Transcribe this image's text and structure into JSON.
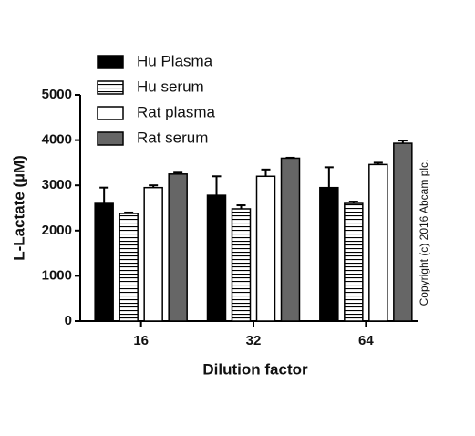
{
  "chart_data": {
    "type": "bar",
    "categories": [
      "16",
      "32",
      "64"
    ],
    "x_label": "Dilution factor",
    "y_label": "L-Lactate (µM)",
    "copyright": "Copyright (c) 2016 Abcam plc.",
    "ylim": [
      0,
      5000
    ],
    "yticks": [
      0,
      1000,
      2000,
      3000,
      4000,
      5000
    ],
    "series": [
      {
        "name": "Hu Plasma",
        "color": "#000000",
        "values": [
          2600,
          2780,
          2950
        ],
        "errors": [
          350,
          420,
          450
        ]
      },
      {
        "name": "Hu serum",
        "color": "#ffffff",
        "pattern": "horizontal-lines",
        "values": [
          2380,
          2480,
          2600
        ],
        "errors": [
          20,
          80,
          40
        ]
      },
      {
        "name": "Rat plasma",
        "color": "#ffffff",
        "values": [
          2950,
          3200,
          3460
        ],
        "errors": [
          50,
          150,
          40
        ]
      },
      {
        "name": "Rat serum",
        "color": "#666666",
        "values": [
          3250,
          3600,
          3930
        ],
        "errors": [
          30,
          10,
          60
        ]
      }
    ]
  }
}
